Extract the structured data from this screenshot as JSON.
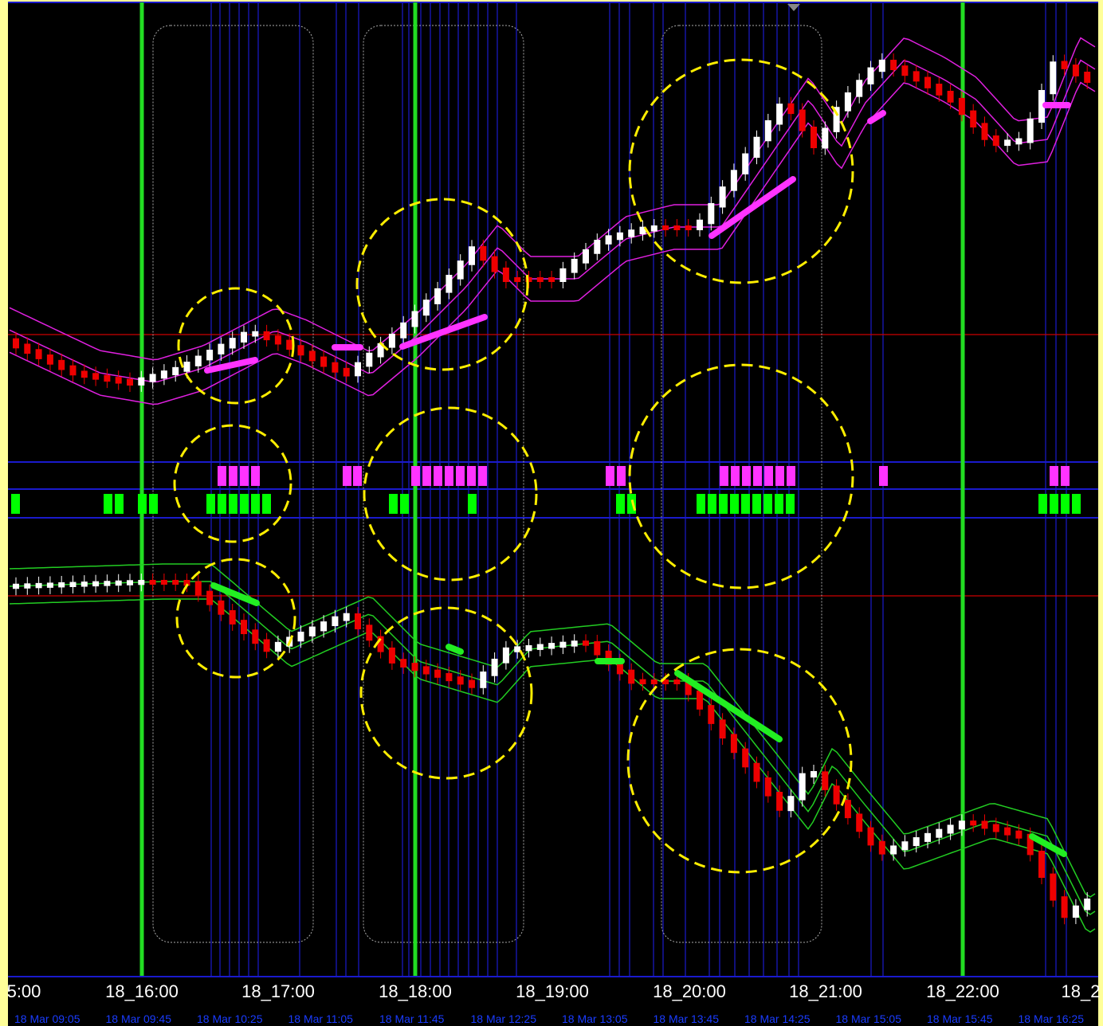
{
  "time_axis": {
    "hours": [
      "5:00",
      "18_16:00",
      "18_17:00",
      "18_18:00",
      "18_19:00",
      "18_20:00",
      "18_21:00",
      "18_22:00",
      "18_2"
    ],
    "dates": [
      "18 Mar 09:05",
      "18 Mar 09:45",
      "18 Mar 10:25",
      "18 Mar 11:05",
      "18 Mar 11:45",
      "18 Mar 12:25",
      "18 Mar 13:05",
      "18 Mar 13:45",
      "18 Mar 14:25",
      "18 Mar 15:05",
      "18 Mar 15:45",
      "18 Mar 16:25"
    ]
  }
}
